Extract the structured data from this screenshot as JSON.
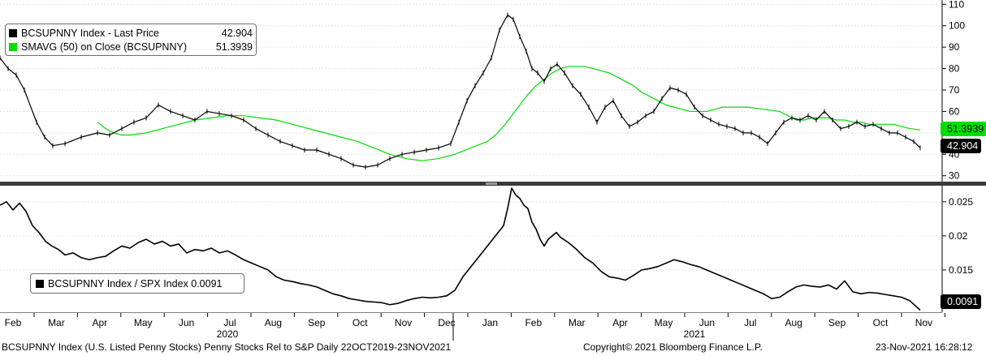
{
  "legend_top": {
    "rows": [
      {
        "label": "BCSUPNNY Index - Last Price",
        "value": "42.904",
        "color": "#000000"
      },
      {
        "label": "SMAVG (50)  on Close (BCSUPNNY)",
        "value": "51.3939",
        "color": "#00dd00"
      }
    ]
  },
  "legend_bottom": {
    "label": "BCSUPNNY Index / SPX Index 0.0091",
    "color": "#000000"
  },
  "tags": {
    "sma": "51.3939",
    "last": "42.904",
    "ratio": "0.0091"
  },
  "footer": {
    "left": "BCSUPNNY Index (U.S. Listed Penny Stocks) Penny Stocks Rel to S&P  Daily 22OCT2019-23NOV2021",
    "center": "Copyright© 2021 Bloomberg Finance L.P.",
    "right": "23-Nov-2021 16:28:12"
  },
  "chart_data": [
    {
      "type": "line",
      "panel": "top",
      "yaxis_ticks": [
        "30",
        "40",
        "50",
        "60",
        "70",
        "80",
        "90",
        "100",
        "110"
      ],
      "ylim": [
        28,
        112
      ],
      "grid": true,
      "x_months": [
        "Feb",
        "Mar",
        "Apr",
        "May",
        "Jun",
        "Jul",
        "Aug",
        "Sep",
        "Oct",
        "Nov",
        "Dec",
        "Jan",
        "Feb",
        "Mar",
        "Apr",
        "May",
        "Jun",
        "Jul",
        "Aug",
        "Sep",
        "Oct",
        "Nov"
      ],
      "x_years": [
        "2020",
        "2021"
      ],
      "series": [
        {
          "name": "BCSUPNNY Index - Last Price",
          "color": "#000000",
          "x": [
            0,
            10,
            20,
            30,
            45,
            55,
            65,
            80,
            100,
            120,
            135,
            150,
            165,
            180,
            195,
            210,
            225,
            240,
            255,
            270,
            285,
            300,
            315,
            330,
            345,
            360,
            375,
            390,
            405,
            420,
            435,
            450,
            465,
            480,
            495,
            510,
            525,
            540,
            555,
            565,
            575,
            585,
            595,
            605,
            615,
            625,
            632,
            640,
            648,
            655,
            662,
            670,
            678,
            686,
            695,
            705,
            715,
            725,
            735,
            745,
            755,
            765,
            775,
            785,
            795,
            805,
            815,
            825,
            835,
            845,
            855,
            865,
            875,
            885,
            895,
            905,
            915,
            925,
            935,
            945,
            955,
            965,
            975,
            985,
            995,
            1005,
            1015,
            1025,
            1035,
            1045,
            1055,
            1065,
            1075,
            1085,
            1095,
            1105,
            1115,
            1125,
            1133
          ],
          "y": [
            85,
            80,
            77,
            70,
            55,
            48,
            44,
            45,
            48,
            50,
            49,
            52,
            55,
            57,
            63,
            60,
            58,
            56,
            60,
            59,
            58,
            56,
            52,
            49,
            46,
            44,
            42,
            42,
            40,
            38,
            35,
            34,
            35,
            38,
            40,
            41,
            42,
            43,
            45,
            55,
            65,
            72,
            78,
            85,
            98,
            105,
            103,
            95,
            88,
            80,
            78,
            74,
            80,
            82,
            78,
            72,
            68,
            62,
            55,
            62,
            65,
            58,
            53,
            55,
            58,
            60,
            66,
            71,
            70,
            68,
            62,
            58,
            56,
            54,
            53,
            52,
            50,
            50,
            48,
            45,
            50,
            55,
            57,
            56,
            58,
            56,
            60,
            56,
            52,
            53,
            55,
            53,
            54,
            52,
            50,
            50,
            48,
            46,
            43
          ]
        },
        {
          "name": "SMAVG (50)  on Close (BCSUPNNY)",
          "color": "#00dd00",
          "x": [
            120,
            130,
            140,
            150,
            160,
            180,
            200,
            220,
            240,
            260,
            280,
            300,
            320,
            340,
            360,
            380,
            400,
            420,
            440,
            460,
            480,
            500,
            520,
            540,
            560,
            580,
            600,
            610,
            620,
            630,
            640,
            650,
            660,
            670,
            680,
            690,
            700,
            710,
            720,
            730,
            740,
            750,
            760,
            770,
            780,
            790,
            800,
            810,
            820,
            830,
            840,
            850,
            860,
            870,
            880,
            890,
            900,
            920,
            940,
            960,
            970,
            980,
            990,
            1000,
            1010,
            1020,
            1030,
            1040,
            1050,
            1060,
            1070,
            1080,
            1090,
            1100,
            1110,
            1120,
            1133
          ],
          "y": [
            55,
            52,
            50,
            49,
            49,
            50,
            52,
            54,
            56,
            57,
            58,
            58,
            57,
            56,
            54,
            52,
            50,
            48,
            46,
            43,
            40,
            38,
            37,
            38,
            40,
            43,
            46,
            49,
            53,
            58,
            63,
            68,
            72,
            75,
            78,
            80,
            81,
            81,
            81,
            80,
            79,
            78,
            76,
            74,
            72,
            69,
            67,
            65,
            63,
            62,
            61,
            60,
            60,
            60,
            61,
            62,
            62,
            62,
            61,
            60,
            58,
            56,
            56,
            57,
            57,
            57,
            56,
            56,
            55,
            55,
            54,
            54,
            54,
            54,
            53,
            52,
            51.3939
          ]
        }
      ]
    },
    {
      "type": "line",
      "panel": "bottom",
      "yaxis_ticks": [
        "0.015",
        "0.02",
        "0.025"
      ],
      "ylim": [
        0.0088,
        0.027
      ],
      "grid": true,
      "series": [
        {
          "name": "BCSUPNNY Index / SPX Index",
          "color": "#000000",
          "x": [
            0,
            8,
            16,
            24,
            32,
            40,
            48,
            56,
            64,
            72,
            80,
            90,
            100,
            110,
            120,
            130,
            140,
            150,
            160,
            170,
            180,
            190,
            200,
            210,
            220,
            230,
            240,
            250,
            260,
            270,
            280,
            290,
            300,
            310,
            320,
            330,
            340,
            350,
            360,
            370,
            380,
            390,
            400,
            410,
            420,
            430,
            440,
            450,
            460,
            470,
            480,
            490,
            500,
            510,
            520,
            530,
            540,
            550,
            560,
            570,
            580,
            590,
            600,
            610,
            620,
            625,
            630,
            635,
            640,
            645,
            650,
            655,
            660,
            665,
            670,
            675,
            680,
            685,
            690,
            700,
            710,
            720,
            730,
            740,
            750,
            760,
            770,
            780,
            790,
            800,
            810,
            820,
            830,
            840,
            850,
            860,
            870,
            880,
            890,
            900,
            910,
            920,
            930,
            940,
            950,
            960,
            970,
            980,
            990,
            1000,
            1010,
            1020,
            1030,
            1040,
            1050,
            1060,
            1070,
            1080,
            1090,
            1100,
            1110,
            1120,
            1133
          ],
          "y": [
            0.0245,
            0.025,
            0.0238,
            0.0248,
            0.0236,
            0.0215,
            0.0205,
            0.0192,
            0.0185,
            0.018,
            0.0172,
            0.0175,
            0.0168,
            0.0165,
            0.0168,
            0.017,
            0.0178,
            0.0185,
            0.0182,
            0.019,
            0.0195,
            0.0188,
            0.0192,
            0.0185,
            0.0188,
            0.0175,
            0.018,
            0.0178,
            0.0182,
            0.0175,
            0.0178,
            0.0172,
            0.0165,
            0.016,
            0.0155,
            0.015,
            0.014,
            0.0135,
            0.0133,
            0.013,
            0.0128,
            0.0125,
            0.012,
            0.0115,
            0.0112,
            0.0108,
            0.0106,
            0.0104,
            0.0103,
            0.0102,
            0.0099,
            0.0101,
            0.0105,
            0.0108,
            0.011,
            0.0109,
            0.011,
            0.0112,
            0.012,
            0.014,
            0.0155,
            0.017,
            0.0185,
            0.02,
            0.0215,
            0.024,
            0.027,
            0.026,
            0.0255,
            0.0245,
            0.024,
            0.022,
            0.021,
            0.0195,
            0.0185,
            0.0195,
            0.02,
            0.0205,
            0.0198,
            0.019,
            0.018,
            0.0168,
            0.016,
            0.0148,
            0.014,
            0.0138,
            0.0135,
            0.0142,
            0.015,
            0.0152,
            0.0155,
            0.016,
            0.0165,
            0.0162,
            0.0158,
            0.0155,
            0.015,
            0.0145,
            0.014,
            0.0135,
            0.013,
            0.0125,
            0.012,
            0.0115,
            0.0108,
            0.011,
            0.0118,
            0.0125,
            0.0128,
            0.0126,
            0.0125,
            0.0128,
            0.0122,
            0.0134,
            0.0118,
            0.0115,
            0.0117,
            0.0116,
            0.0114,
            0.0112,
            0.011,
            0.0105,
            0.0091
          ]
        }
      ]
    }
  ]
}
